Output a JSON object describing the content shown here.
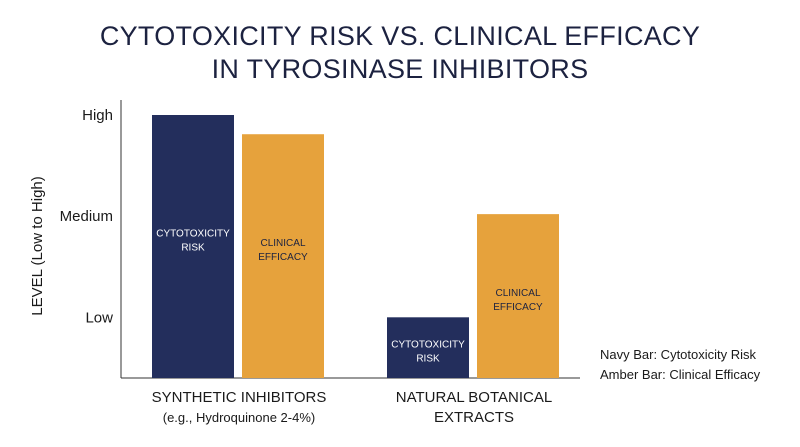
{
  "chart_data": {
    "type": "bar",
    "title": [
      "CYTOTOXICITY RISK VS. CLINICAL EFFICACY",
      "IN TYROSINASE INHIBITORS"
    ],
    "ylabel": "LEVEL (Low to High)",
    "y_ticks": [
      {
        "label": "Low",
        "value": 1
      },
      {
        "label": "Medium",
        "value": 2
      },
      {
        "label": "High",
        "value": 3
      }
    ],
    "ylim": [
      0.4,
      3
    ],
    "groups": [
      {
        "label": "SYNTHETIC INHIBITORS",
        "sublabel": "(e.g., Hydroquinone 2-4%)"
      },
      {
        "label": "NATURAL BOTANICAL",
        "sublabel": "EXTRACTS"
      }
    ],
    "series": [
      {
        "key": "cytotoxicity",
        "bar_label": [
          "CYTOTOXICITY",
          "RISK"
        ],
        "color": "#232e5c",
        "values": [
          3.0,
          1.0
        ]
      },
      {
        "key": "efficacy",
        "bar_label": [
          "CLINICAL",
          "EFFICACY"
        ],
        "color": "#e6a23c",
        "values": [
          2.81,
          2.02
        ]
      }
    ],
    "legend": [
      "Navy Bar: Cytotoxicity Risk",
      "Amber Bar: Clinical Efficacy"
    ]
  }
}
